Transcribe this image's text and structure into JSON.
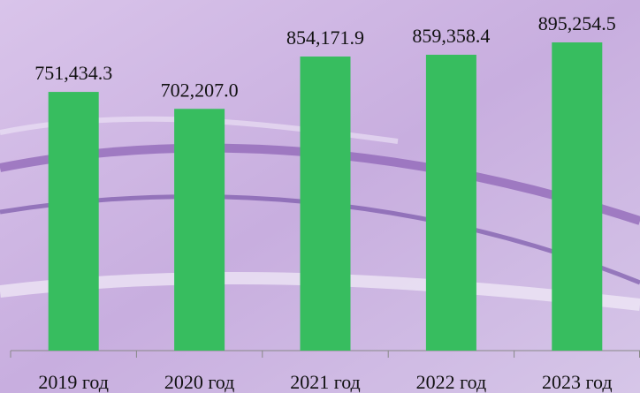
{
  "chart_data": {
    "type": "bar",
    "categories": [
      "2019 год",
      "2020 год",
      "2021 год",
      "2022 год",
      "2023 год"
    ],
    "values": [
      751434.3,
      702207.0,
      854171.9,
      859358.4,
      895254.5
    ],
    "value_labels": [
      "751,434.3",
      "702,207.0",
      "854,171.9",
      "859,358.4",
      "895,254.5"
    ],
    "color": "#37bd5f"
  }
}
